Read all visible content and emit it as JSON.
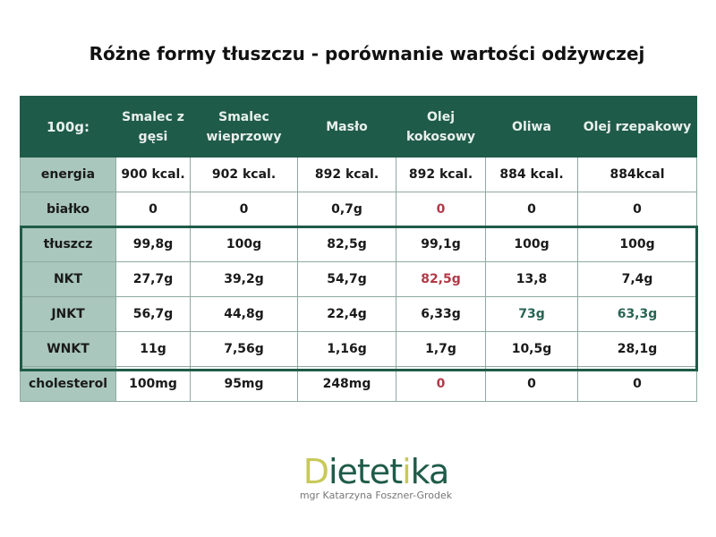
{
  "title": "Różne formy tłuszczu - porównanie wartości odżywczej",
  "table": {
    "headers": [
      "100g:",
      "Smalec z gęsi",
      "Smalec wieprzowy",
      "Masło",
      "Olej kokosowy",
      "Oliwa",
      "Olej rzepakowy"
    ],
    "rows": [
      {
        "label": "energia",
        "values": [
          "900 kcal.",
          "902 kcal.",
          "892 kcal.",
          "892 kcal.",
          "884 kcal.",
          "884kcal"
        ]
      },
      {
        "label": "białko",
        "values": [
          "0",
          "0",
          "0,7g",
          "0",
          "0",
          "0"
        ]
      },
      {
        "label": "tłuszcz",
        "values": [
          "99,8g",
          "100g",
          "82,5g",
          "99,1g",
          "100g",
          "100g"
        ]
      },
      {
        "label": "NKT",
        "values": [
          "27,7g",
          "39,2g",
          "54,7g",
          "82,5g",
          "13,8",
          "7,4g"
        ]
      },
      {
        "label": "JNKT",
        "values": [
          "56,7g",
          "44,8g",
          "22,4g",
          "6,33g",
          "73g",
          "63,3g"
        ]
      },
      {
        "label": "WNKT",
        "values": [
          "11g",
          "7,56g",
          "1,16g",
          "1,7g",
          "10,5g",
          "28,1g"
        ]
      },
      {
        "label": "cholesterol",
        "values": [
          "100mg",
          "95mg",
          "248mg",
          "0",
          "0",
          "0"
        ]
      }
    ],
    "highlight_colors": {
      "red": "#b23a48",
      "green": "#2a6454",
      "header": "#1f5b49",
      "label_bg": "#a9c7bc"
    }
  },
  "logo": {
    "brand": "Dietetika",
    "subtitle": "mgr Katarzyna Foszner-Grodek"
  }
}
